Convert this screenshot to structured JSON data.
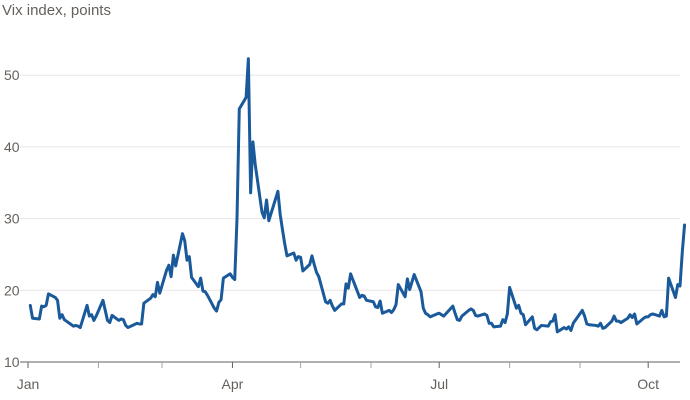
{
  "chart_data": {
    "type": "line",
    "title": "",
    "ylabel": "Vix index, points",
    "xlabel": "",
    "ylim": [
      10,
      54
    ],
    "yticks": [
      10,
      20,
      30,
      40,
      50
    ],
    "xlim": [
      "2025-01-01",
      "2025-10-15"
    ],
    "xticks": [
      {
        "label": "Jan",
        "date": "2025-01-01"
      },
      {
        "label": "Apr",
        "date": "2025-04-01"
      },
      {
        "label": "Jul",
        "date": "2025-07-01"
      },
      {
        "label": "Oct",
        "date": "2025-10-01"
      }
    ],
    "minor_xticks": [
      "2025-02-01",
      "2025-03-01",
      "2025-05-01",
      "2025-06-01",
      "2025-08-01",
      "2025-09-01"
    ],
    "grid": true,
    "line_color": "#1a5a9b",
    "series": [
      {
        "values": [
          [
            "2025-01-02",
            17.9
          ],
          [
            "2025-01-03",
            16.1
          ],
          [
            "2025-01-06",
            16.0
          ],
          [
            "2025-01-07",
            17.8
          ],
          [
            "2025-01-08",
            17.7
          ],
          [
            "2025-01-09",
            17.9
          ],
          [
            "2025-01-10",
            19.5
          ],
          [
            "2025-01-13",
            19.0
          ],
          [
            "2025-01-14",
            18.6
          ],
          [
            "2025-01-15",
            16.1
          ],
          [
            "2025-01-16",
            16.6
          ],
          [
            "2025-01-17",
            15.9
          ],
          [
            "2025-01-21",
            15.0
          ],
          [
            "2025-01-22",
            15.1
          ],
          [
            "2025-01-23",
            15.0
          ],
          [
            "2025-01-24",
            14.8
          ],
          [
            "2025-01-27",
            17.9
          ],
          [
            "2025-01-28",
            16.4
          ],
          [
            "2025-01-29",
            16.6
          ],
          [
            "2025-01-30",
            15.8
          ],
          [
            "2025-01-31",
            16.4
          ],
          [
            "2025-02-03",
            18.6
          ],
          [
            "2025-02-04",
            17.2
          ],
          [
            "2025-02-05",
            15.8
          ],
          [
            "2025-02-06",
            15.5
          ],
          [
            "2025-02-07",
            16.5
          ],
          [
            "2025-02-10",
            15.8
          ],
          [
            "2025-02-11",
            16.0
          ],
          [
            "2025-02-12",
            15.9
          ],
          [
            "2025-02-13",
            15.1
          ],
          [
            "2025-02-14",
            14.8
          ],
          [
            "2025-02-18",
            15.4
          ],
          [
            "2025-02-19",
            15.3
          ],
          [
            "2025-02-20",
            15.3
          ],
          [
            "2025-02-21",
            18.2
          ],
          [
            "2025-02-24",
            18.9
          ],
          [
            "2025-02-25",
            19.4
          ],
          [
            "2025-02-26",
            19.1
          ],
          [
            "2025-02-27",
            21.1
          ],
          [
            "2025-02-28",
            19.6
          ],
          [
            "2025-03-03",
            22.8
          ],
          [
            "2025-03-04",
            23.5
          ],
          [
            "2025-03-05",
            21.9
          ],
          [
            "2025-03-06",
            24.9
          ],
          [
            "2025-03-07",
            23.4
          ],
          [
            "2025-03-10",
            27.9
          ],
          [
            "2025-03-11",
            26.9
          ],
          [
            "2025-03-12",
            24.2
          ],
          [
            "2025-03-13",
            24.7
          ],
          [
            "2025-03-14",
            21.8
          ],
          [
            "2025-03-17",
            20.5
          ],
          [
            "2025-03-18",
            21.7
          ],
          [
            "2025-03-19",
            19.9
          ],
          [
            "2025-03-20",
            19.8
          ],
          [
            "2025-03-21",
            19.3
          ],
          [
            "2025-03-24",
            17.5
          ],
          [
            "2025-03-25",
            17.1
          ],
          [
            "2025-03-26",
            18.3
          ],
          [
            "2025-03-27",
            18.7
          ],
          [
            "2025-03-28",
            21.7
          ],
          [
            "2025-03-31",
            22.3
          ],
          [
            "2025-04-01",
            21.8
          ],
          [
            "2025-04-02",
            21.5
          ],
          [
            "2025-04-03",
            30.0
          ],
          [
            "2025-04-04",
            45.3
          ],
          [
            "2025-04-07",
            46.9
          ],
          [
            "2025-04-08",
            52.3
          ],
          [
            "2025-04-09",
            33.6
          ],
          [
            "2025-04-10",
            40.7
          ],
          [
            "2025-04-11",
            37.6
          ],
          [
            "2025-04-14",
            30.9
          ],
          [
            "2025-04-15",
            30.1
          ],
          [
            "2025-04-16",
            32.6
          ],
          [
            "2025-04-17",
            29.7
          ],
          [
            "2025-04-21",
            33.8
          ],
          [
            "2025-04-22",
            30.6
          ],
          [
            "2025-04-23",
            28.5
          ],
          [
            "2025-04-24",
            26.5
          ],
          [
            "2025-04-25",
            24.8
          ],
          [
            "2025-04-28",
            25.2
          ],
          [
            "2025-04-29",
            24.2
          ],
          [
            "2025-04-30",
            24.7
          ],
          [
            "2025-05-01",
            24.6
          ],
          [
            "2025-05-02",
            22.7
          ],
          [
            "2025-05-05",
            23.6
          ],
          [
            "2025-05-06",
            24.8
          ],
          [
            "2025-05-07",
            23.6
          ],
          [
            "2025-05-08",
            22.5
          ],
          [
            "2025-05-09",
            21.9
          ],
          [
            "2025-05-12",
            18.4
          ],
          [
            "2025-05-13",
            18.2
          ],
          [
            "2025-05-14",
            18.6
          ],
          [
            "2025-05-15",
            17.8
          ],
          [
            "2025-05-16",
            17.2
          ],
          [
            "2025-05-19",
            18.1
          ],
          [
            "2025-05-20",
            18.1
          ],
          [
            "2025-05-21",
            20.9
          ],
          [
            "2025-05-22",
            20.3
          ],
          [
            "2025-05-23",
            22.3
          ],
          [
            "2025-05-27",
            19.0
          ],
          [
            "2025-05-28",
            19.3
          ],
          [
            "2025-05-29",
            19.2
          ],
          [
            "2025-05-30",
            18.6
          ],
          [
            "2025-06-02",
            18.4
          ],
          [
            "2025-06-03",
            17.7
          ],
          [
            "2025-06-04",
            17.6
          ],
          [
            "2025-06-05",
            18.5
          ],
          [
            "2025-06-06",
            16.8
          ],
          [
            "2025-06-09",
            17.2
          ],
          [
            "2025-06-10",
            16.9
          ],
          [
            "2025-06-11",
            17.3
          ],
          [
            "2025-06-12",
            18.0
          ],
          [
            "2025-06-13",
            20.8
          ],
          [
            "2025-06-16",
            19.1
          ],
          [
            "2025-06-17",
            21.6
          ],
          [
            "2025-06-18",
            20.1
          ],
          [
            "2025-06-20",
            22.2
          ],
          [
            "2025-06-23",
            19.8
          ],
          [
            "2025-06-24",
            17.5
          ],
          [
            "2025-06-25",
            16.8
          ],
          [
            "2025-06-26",
            16.6
          ],
          [
            "2025-06-27",
            16.3
          ],
          [
            "2025-06-30",
            16.7
          ],
          [
            "2025-07-01",
            16.8
          ],
          [
            "2025-07-02",
            16.6
          ],
          [
            "2025-07-03",
            16.4
          ],
          [
            "2025-07-07",
            17.8
          ],
          [
            "2025-07-08",
            16.8
          ],
          [
            "2025-07-09",
            15.9
          ],
          [
            "2025-07-10",
            15.8
          ],
          [
            "2025-07-11",
            16.4
          ],
          [
            "2025-07-14",
            17.2
          ],
          [
            "2025-07-15",
            17.4
          ],
          [
            "2025-07-16",
            17.2
          ],
          [
            "2025-07-17",
            16.5
          ],
          [
            "2025-07-18",
            16.4
          ],
          [
            "2025-07-21",
            16.7
          ],
          [
            "2025-07-22",
            16.5
          ],
          [
            "2025-07-23",
            15.4
          ],
          [
            "2025-07-24",
            15.4
          ],
          [
            "2025-07-25",
            14.9
          ],
          [
            "2025-07-28",
            15.0
          ],
          [
            "2025-07-29",
            15.9
          ],
          [
            "2025-07-30",
            15.5
          ],
          [
            "2025-07-31",
            16.7
          ],
          [
            "2025-08-01",
            20.4
          ],
          [
            "2025-08-04",
            17.5
          ],
          [
            "2025-08-05",
            17.9
          ],
          [
            "2025-08-06",
            16.8
          ],
          [
            "2025-08-07",
            16.6
          ],
          [
            "2025-08-08",
            15.2
          ],
          [
            "2025-08-11",
            16.3
          ],
          [
            "2025-08-12",
            14.7
          ],
          [
            "2025-08-13",
            14.5
          ],
          [
            "2025-08-14",
            14.8
          ],
          [
            "2025-08-15",
            15.1
          ],
          [
            "2025-08-18",
            15.0
          ],
          [
            "2025-08-19",
            15.6
          ],
          [
            "2025-08-20",
            15.7
          ],
          [
            "2025-08-21",
            16.6
          ],
          [
            "2025-08-22",
            14.2
          ],
          [
            "2025-08-25",
            14.8
          ],
          [
            "2025-08-26",
            14.6
          ],
          [
            "2025-08-27",
            14.9
          ],
          [
            "2025-08-28",
            14.4
          ],
          [
            "2025-08-29",
            15.4
          ],
          [
            "2025-09-02",
            17.2
          ],
          [
            "2025-09-03",
            16.4
          ],
          [
            "2025-09-04",
            15.3
          ],
          [
            "2025-09-05",
            15.2
          ],
          [
            "2025-09-08",
            15.1
          ],
          [
            "2025-09-09",
            15.0
          ],
          [
            "2025-09-10",
            15.4
          ],
          [
            "2025-09-11",
            14.7
          ],
          [
            "2025-09-12",
            14.8
          ],
          [
            "2025-09-15",
            15.7
          ],
          [
            "2025-09-16",
            16.4
          ],
          [
            "2025-09-17",
            15.7
          ],
          [
            "2025-09-18",
            15.7
          ],
          [
            "2025-09-19",
            15.5
          ],
          [
            "2025-09-22",
            16.1
          ],
          [
            "2025-09-23",
            16.6
          ],
          [
            "2025-09-24",
            16.2
          ],
          [
            "2025-09-25",
            16.7
          ],
          [
            "2025-09-26",
            15.3
          ],
          [
            "2025-09-29",
            16.1
          ],
          [
            "2025-09-30",
            16.3
          ],
          [
            "2025-10-01",
            16.3
          ],
          [
            "2025-10-02",
            16.6
          ],
          [
            "2025-10-03",
            16.7
          ],
          [
            "2025-10-06",
            16.4
          ],
          [
            "2025-10-07",
            17.2
          ],
          [
            "2025-10-08",
            16.3
          ],
          [
            "2025-10-09",
            16.4
          ],
          [
            "2025-10-10",
            21.7
          ],
          [
            "2025-10-13",
            19.0
          ],
          [
            "2025-10-14",
            20.8
          ],
          [
            "2025-10-15",
            20.6
          ],
          [
            "2025-10-16",
            25.3
          ],
          [
            "2025-10-17",
            29.1
          ]
        ]
      }
    ]
  }
}
